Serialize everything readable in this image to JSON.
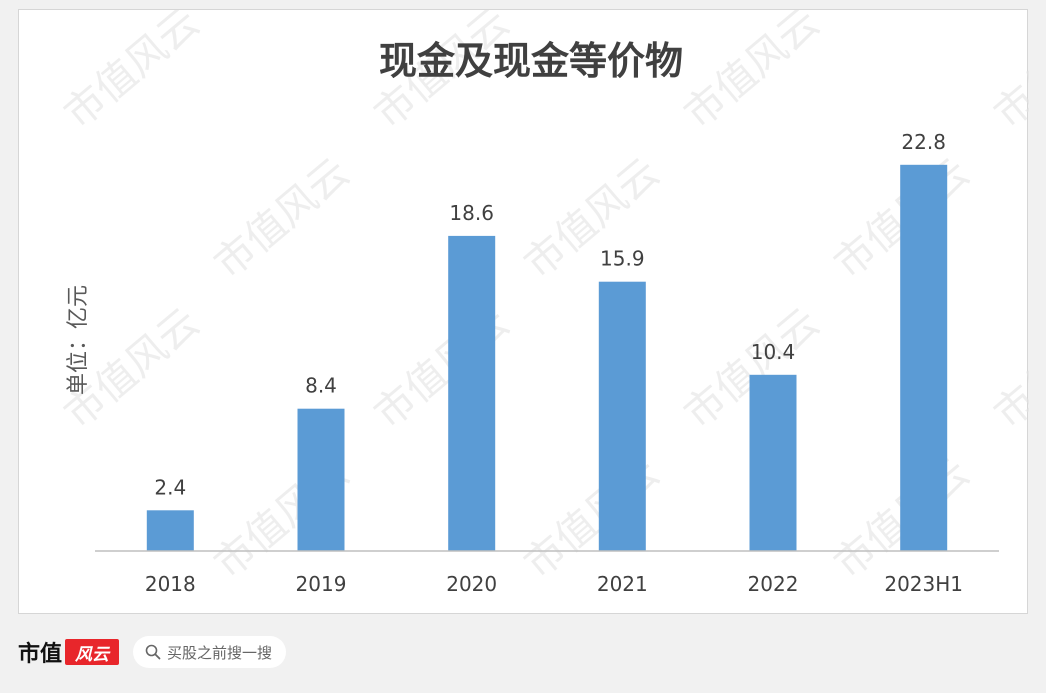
{
  "chart_data": {
    "type": "bar",
    "title": "现金及现金等价物",
    "ylabel": "单位：亿元",
    "xlabel": "",
    "categories": [
      "2018",
      "2019",
      "2020",
      "2021",
      "2022",
      "2023H1"
    ],
    "values": [
      2.4,
      8.4,
      18.6,
      15.9,
      10.4,
      22.8
    ],
    "data_labels": [
      "2.4",
      "8.4",
      "18.6",
      "15.9",
      "10.4",
      "22.8"
    ],
    "ylim": [
      0,
      24
    ],
    "grid": false,
    "legend": "none",
    "bar_color": "#5b9bd5"
  },
  "watermark": "市值风云",
  "footer": {
    "brand": "市值",
    "brand_badge": "风云",
    "search_icon": "search-icon",
    "search_text": "买股之前搜一搜"
  }
}
